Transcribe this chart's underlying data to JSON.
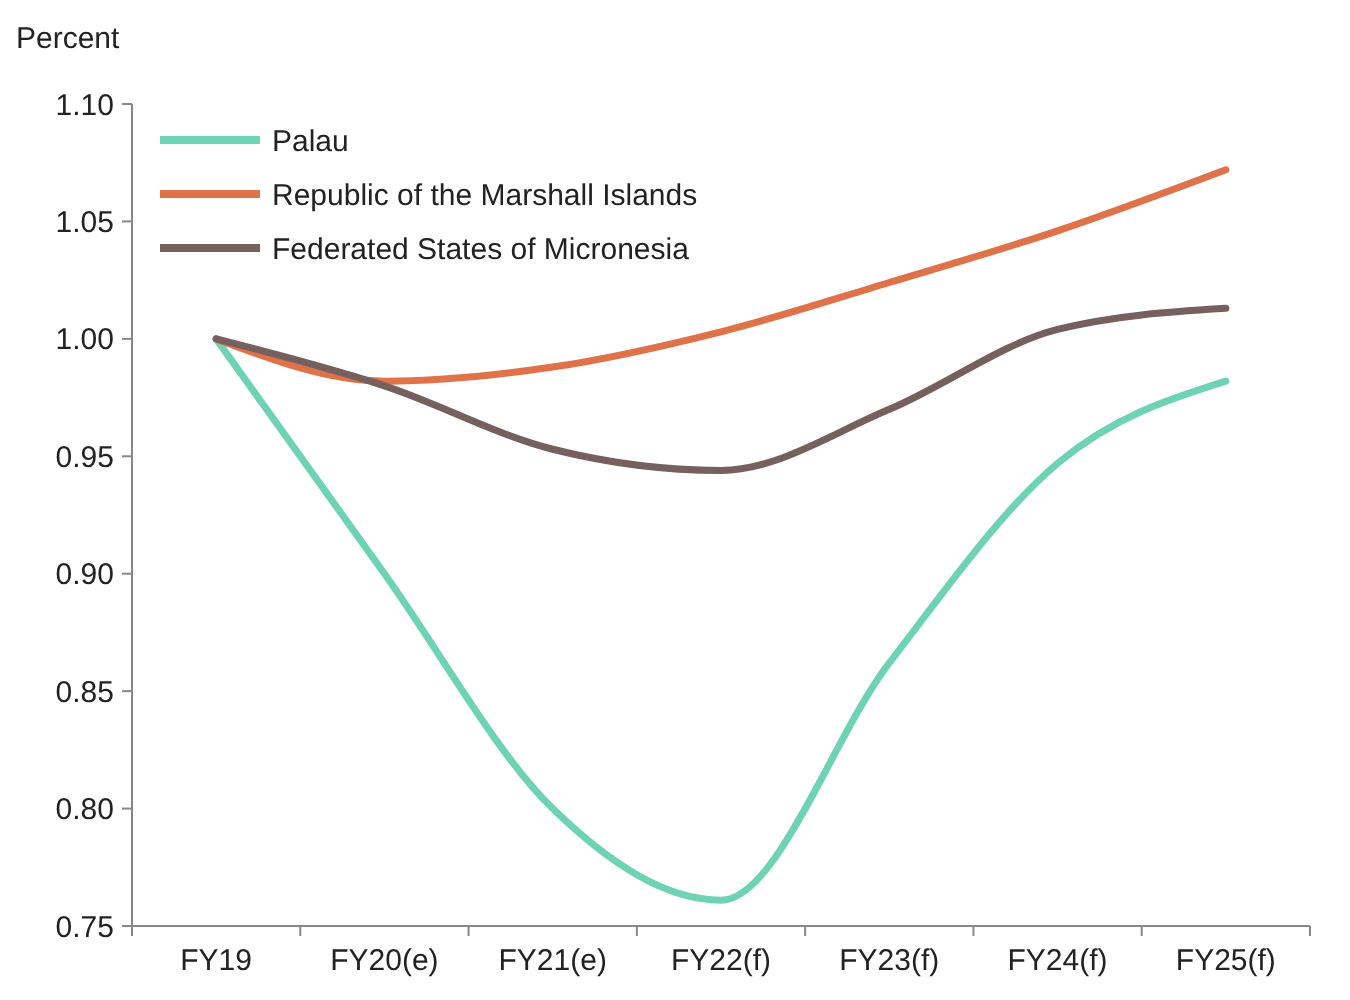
{
  "chart_data": {
    "type": "line",
    "ylabel": "Percent",
    "categories": [
      "FY19",
      "FY20(e)",
      "FY21(e)",
      "FY22(f)",
      "FY23(f)",
      "FY24(f)",
      "FY25(f)"
    ],
    "series": [
      {
        "name": "Palau",
        "color": "#6dd3b4",
        "values": [
          1.0,
          0.9,
          0.8,
          0.761,
          0.862,
          0.947,
          0.982
        ]
      },
      {
        "name": "Republic of the Marshall Islands",
        "color": "#e0724a",
        "values": [
          1.0,
          0.982,
          0.988,
          1.003,
          1.024,
          1.046,
          1.072
        ]
      },
      {
        "name": "Federated States of Micronesia",
        "color": "#76605e",
        "values": [
          1.0,
          0.98,
          0.953,
          0.944,
          0.97,
          1.004,
          1.013
        ]
      }
    ],
    "ylim": [
      0.75,
      1.1
    ],
    "yticks": [
      {
        "value": 0.75,
        "label": "0.75"
      },
      {
        "value": 0.8,
        "label": "0.80"
      },
      {
        "value": 0.85,
        "label": "0.85"
      },
      {
        "value": 0.9,
        "label": "0.90"
      },
      {
        "value": 0.95,
        "label": "0.95"
      },
      {
        "value": 1.0,
        "label": "1.00"
      },
      {
        "value": 1.05,
        "label": "1.05"
      },
      {
        "value": 1.1,
        "label": "1.10"
      }
    ],
    "grid": false,
    "legend": "top left",
    "marker": "none",
    "line_style": "solid"
  }
}
